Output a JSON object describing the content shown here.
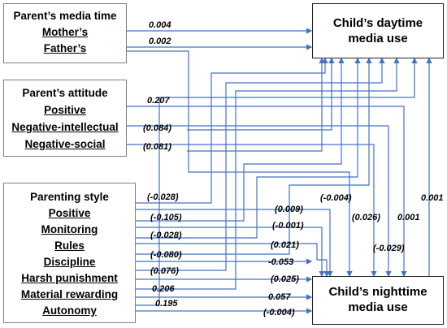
{
  "outcomes": {
    "daytime": [
      "Child’s daytime",
      "media use"
    ],
    "nighttime": [
      "Child’s nighttime",
      "media use"
    ]
  },
  "groups": {
    "media_time": {
      "title": "Parent’s media time",
      "items": [
        "Mother’s",
        "Father’s"
      ]
    },
    "attitude": {
      "title": "Parent’s attitude",
      "items": [
        "Positive",
        "Negative-intellectual",
        "Negative-social"
      ]
    },
    "style": {
      "title": "Parenting style",
      "items": [
        "Positive",
        "Monitoring",
        "Rules",
        "Discipline",
        "Harsh punishment",
        "Material rewarding",
        "Autonomy"
      ]
    }
  },
  "coefficients": {
    "mother_day": "0.004",
    "father_day": "0.002",
    "positive_att_day": "0.207",
    "neg_intel_day": "(0.084)",
    "neg_social_day": "(0.081)",
    "style_day": [
      "(-0.028)",
      "(-0.105)",
      "(-0.028)",
      "(-0.080)",
      "(0.076)",
      "0.206",
      "0.195"
    ],
    "style_night": [
      "(0.009)",
      "(-0.001)",
      "(0.021)",
      "-0.053",
      "(0.025)",
      "0.057",
      "(-0.004)"
    ],
    "vertical": [
      "(-0.004)",
      "(0.026)",
      "0.001",
      "(-0.029)",
      "0.001"
    ]
  },
  "colors": {
    "line": "#4472c4",
    "box_border": "#7f7f7f"
  }
}
